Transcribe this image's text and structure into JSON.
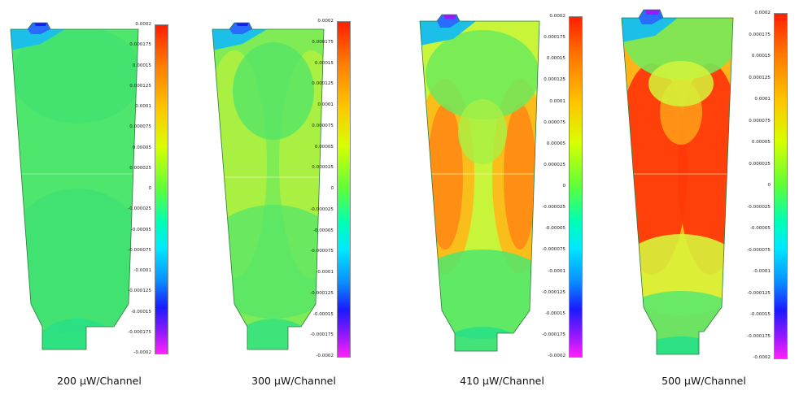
{
  "tick_labels": [
    "0.0002",
    "0.000175",
    "0.00015",
    "0.000125",
    "0.0001",
    "0.000075",
    "0.00005",
    "0.000025",
    "0",
    "-0.000025",
    "-0.00005",
    "-0.000075",
    "-0.0001",
    "-0.000125",
    "-0.00015",
    "-0.000175",
    "-0.0002"
  ],
  "colorbar_gradient": [
    "#ff1e00",
    "#ffc400",
    "#5cff3a",
    "#00e8ff",
    "#1a1aff",
    "#ff20ff"
  ],
  "panels": [
    {
      "caption": "200 μW/Channel",
      "side_color": "#4fe86e",
      "center_color": "#49e46c",
      "hot_color": "#5ce86a",
      "hot_level": 0.0
    },
    {
      "caption": "300 μW/Channel",
      "side_color": "#b6f23e",
      "center_color": "#5fe768",
      "hot_color": "#c4f23a",
      "hot_level": 0.35
    },
    {
      "caption": "410 μW/Channel",
      "side_color": "#ff8a14",
      "center_color": "#e6f43a",
      "hot_color": "#ff7a10",
      "hot_level": 0.75
    },
    {
      "caption": "500 μW/Channel",
      "side_color": "#ff3a0a",
      "center_color": "#ffb418",
      "hot_color": "#ff2d08",
      "hot_level": 1.0
    }
  ]
}
